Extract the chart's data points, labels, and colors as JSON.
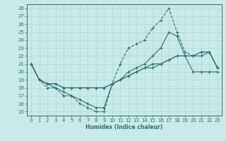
{
  "xlabel": "Humidex (Indice chaleur)",
  "bg_color": "#c8eae8",
  "line_color": "#2d7070",
  "grid_color": "#b0d8d5",
  "xlim": [
    -0.5,
    23.5
  ],
  "ylim": [
    14.5,
    28.5
  ],
  "xticks": [
    0,
    1,
    2,
    3,
    4,
    5,
    6,
    7,
    8,
    9,
    10,
    11,
    12,
    13,
    14,
    15,
    16,
    17,
    18,
    19,
    20,
    21,
    22,
    23
  ],
  "yticks": [
    15,
    16,
    17,
    18,
    19,
    20,
    21,
    22,
    23,
    24,
    25,
    26,
    27,
    28
  ],
  "curve1_x": [
    0,
    1,
    2,
    3,
    4,
    5,
    6,
    7,
    8,
    9,
    10,
    11,
    12,
    13,
    14,
    15,
    16,
    17,
    18,
    19,
    20,
    21,
    22,
    23
  ],
  "curve1_y": [
    21,
    19,
    18,
    18,
    17,
    17,
    16,
    15.5,
    15,
    15,
    18.5,
    21,
    23,
    23.5,
    24,
    25.5,
    26.5,
    28,
    25,
    22.5,
    22,
    22.5,
    22.5,
    20.5
  ],
  "curve2_x": [
    0,
    1,
    2,
    3,
    4,
    5,
    6,
    7,
    8,
    9,
    10,
    11,
    12,
    13,
    14,
    15,
    16,
    17,
    18,
    19,
    20,
    21,
    22,
    23
  ],
  "curve2_y": [
    21,
    19,
    18.5,
    18,
    17.5,
    17,
    16.5,
    16,
    15.5,
    15.5,
    18.5,
    19,
    20,
    20.5,
    21,
    22,
    23,
    25,
    24.5,
    22,
    22,
    22.5,
    22.5,
    20.5
  ],
  "curve3_x": [
    0,
    1,
    2,
    3,
    4,
    5,
    6,
    7,
    8,
    9,
    10,
    11,
    12,
    13,
    14,
    15,
    16,
    17,
    18,
    19,
    20,
    21,
    22,
    23
  ],
  "curve3_y": [
    21,
    19,
    18.5,
    18.5,
    18,
    18,
    18,
    18,
    18,
    18,
    18.5,
    19,
    19.5,
    20,
    20.5,
    21,
    21,
    21.5,
    22,
    22,
    20,
    20,
    20,
    20
  ],
  "curve4_x": [
    0,
    1,
    2,
    3,
    4,
    5,
    6,
    7,
    8,
    9,
    10,
    11,
    12,
    13,
    14,
    15,
    16,
    17,
    18,
    19,
    20,
    21,
    22,
    23
  ],
  "curve4_y": [
    21,
    19,
    18.5,
    18.5,
    18,
    18,
    18,
    18,
    18,
    18,
    18.5,
    19,
    19.5,
    20,
    20.5,
    20.5,
    21,
    21.5,
    22,
    22,
    22,
    22,
    22.5,
    20.5
  ]
}
